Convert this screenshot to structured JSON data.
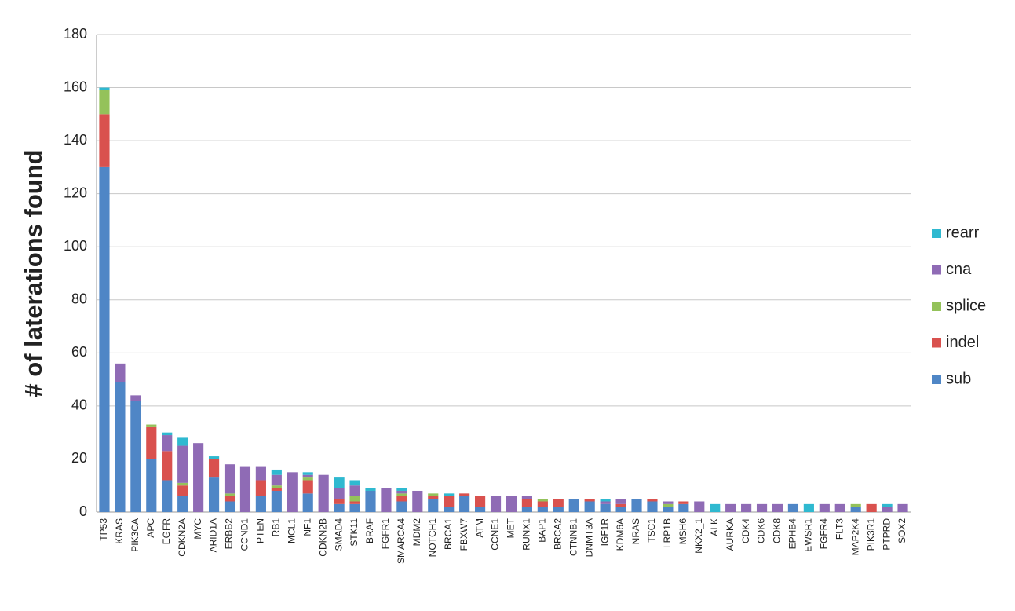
{
  "chart_data": {
    "type": "stacked_bar",
    "y_label": "# of laterations found",
    "categories": [
      "TP53",
      "KRAS",
      "PIK3CA",
      "APC",
      "EGFR",
      "CDKN2A",
      "MYC",
      "ARID1A",
      "ERBB2",
      "CCND1",
      "PTEN",
      "RB1",
      "MCL1",
      "NF1",
      "CDKN2B",
      "SMAD4",
      "STK11",
      "BRAF",
      "FGFR1",
      "SMARCA4",
      "MDM2",
      "NOTCH1",
      "BRCA1",
      "FBXW7",
      "ATM",
      "CCNE1",
      "MET",
      "RUNX1",
      "BAP1",
      "BRCA2",
      "CTNNB1",
      "DNMT3A",
      "IGF1R",
      "KDM6A",
      "NRAS",
      "TSC1",
      "LRP1B",
      "MSH6",
      "NKX2_1",
      "ALK",
      "AURKA",
      "CDK4",
      "CDK6",
      "CDK8",
      "EPHB4",
      "EWSR1",
      "FGFR4",
      "FLT3",
      "MAP2K4",
      "PIK3R1",
      "PTPRD",
      "SOX2"
    ],
    "series": [
      {
        "name": "sub",
        "color": "#4f86c6",
        "values": [
          130,
          49,
          42,
          20,
          12,
          6,
          0,
          13,
          4,
          0,
          6,
          8,
          0,
          7,
          0,
          3,
          3,
          8,
          0,
          4,
          0,
          5,
          2,
          6,
          2,
          0,
          0,
          2,
          2,
          2,
          5,
          4,
          3,
          2,
          5,
          4,
          2,
          3,
          0,
          0,
          0,
          0,
          0,
          0,
          3,
          0,
          0,
          0,
          2,
          0,
          0,
          0
        ]
      },
      {
        "name": "indel",
        "color": "#d9514e",
        "values": [
          20,
          0,
          0,
          12,
          11,
          4,
          0,
          7,
          2,
          0,
          6,
          1,
          0,
          5,
          0,
          2,
          1,
          0,
          0,
          2,
          0,
          1,
          4,
          1,
          4,
          0,
          0,
          3,
          2,
          3,
          0,
          1,
          0,
          1,
          0,
          1,
          0,
          1,
          0,
          0,
          0,
          0,
          0,
          0,
          0,
          0,
          0,
          0,
          0,
          3,
          0,
          0
        ]
      },
      {
        "name": "splice",
        "color": "#94c25a",
        "values": [
          9,
          0,
          0,
          1,
          0,
          1,
          0,
          0,
          1,
          0,
          0,
          1,
          0,
          1,
          0,
          0,
          2,
          0,
          0,
          1,
          0,
          1,
          0,
          0,
          0,
          0,
          0,
          0,
          1,
          0,
          0,
          0,
          0,
          0,
          0,
          0,
          1,
          0,
          0,
          0,
          0,
          0,
          0,
          0,
          0,
          0,
          0,
          0,
          1,
          0,
          0,
          0
        ]
      },
      {
        "name": "cna",
        "color": "#8f6bb5",
        "values": [
          0,
          7,
          2,
          0,
          6,
          14,
          26,
          0,
          11,
          17,
          5,
          4,
          15,
          1,
          14,
          4,
          4,
          0,
          9,
          1,
          8,
          0,
          0,
          0,
          0,
          6,
          6,
          1,
          0,
          0,
          0,
          0,
          1,
          2,
          0,
          0,
          1,
          0,
          4,
          0,
          3,
          3,
          3,
          3,
          0,
          0,
          3,
          3,
          0,
          0,
          2,
          3
        ]
      },
      {
        "name": "rearr",
        "color": "#2fb9d0",
        "values": [
          1,
          0,
          0,
          0,
          1,
          3,
          0,
          1,
          0,
          0,
          0,
          2,
          0,
          1,
          0,
          4,
          2,
          1,
          0,
          1,
          0,
          0,
          1,
          0,
          0,
          0,
          0,
          0,
          0,
          0,
          0,
          0,
          1,
          0,
          0,
          0,
          0,
          0,
          0,
          3,
          0,
          0,
          0,
          0,
          0,
          3,
          0,
          0,
          0,
          0,
          1,
          0
        ]
      }
    ],
    "ylim": [
      0,
      180
    ],
    "yticks": [
      0,
      20,
      40,
      60,
      80,
      100,
      120,
      140,
      160,
      180
    ],
    "grid": true,
    "legend": "right"
  }
}
